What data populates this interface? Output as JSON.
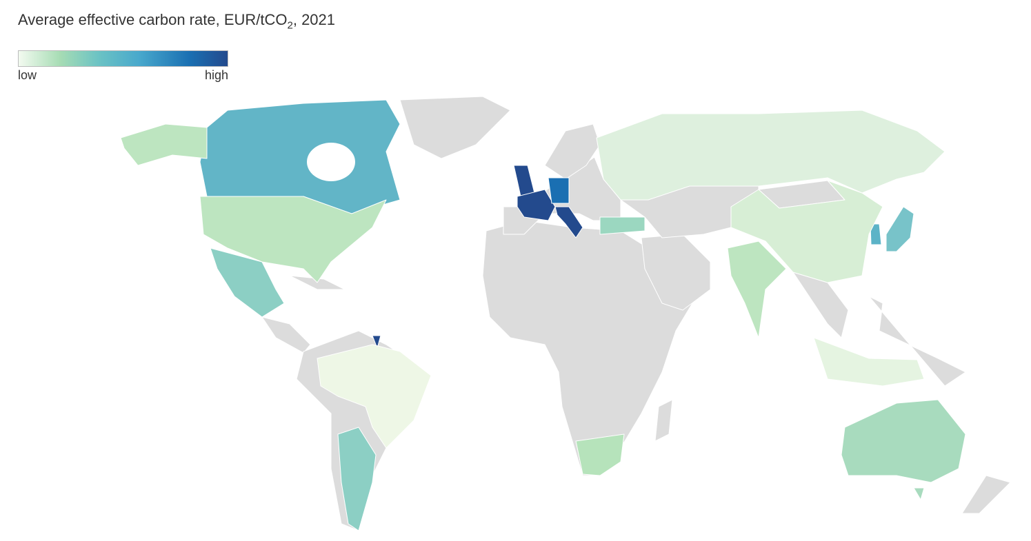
{
  "title": {
    "main": "Average effective carbon rate, EUR/tCO",
    "sub": "2",
    "suffix": ", 2021"
  },
  "legend": {
    "low": "low",
    "high": "high",
    "colors": [
      "#f3faf0",
      "#a6dcb4",
      "#6cc3c4",
      "#48a8cc",
      "#1a6fb2",
      "#234a8d"
    ]
  },
  "no_data_color": "#dcdcdc",
  "countries": [
    {
      "name": "United Kingdom",
      "color": "#234a8d"
    },
    {
      "name": "France",
      "color": "#234a8d"
    },
    {
      "name": "Italy",
      "color": "#234a8d"
    },
    {
      "name": "French Guiana",
      "color": "#234a8d"
    },
    {
      "name": "Germany",
      "color": "#1a6fb2"
    },
    {
      "name": "Canada",
      "color": "#62b5c7"
    },
    {
      "name": "South Korea",
      "color": "#5cb3c7"
    },
    {
      "name": "Japan",
      "color": "#78c3c9"
    },
    {
      "name": "Mexico",
      "color": "#8ccfc4"
    },
    {
      "name": "Argentina",
      "color": "#8ccfc4"
    },
    {
      "name": "Turkey",
      "color": "#9bd7c0"
    },
    {
      "name": "Australia",
      "color": "#a8dbbe"
    },
    {
      "name": "South Africa",
      "color": "#b6e3bb"
    },
    {
      "name": "United States",
      "color": "#bde5c0"
    },
    {
      "name": "India",
      "color": "#bde5c0"
    },
    {
      "name": "China",
      "color": "#d7eed5"
    },
    {
      "name": "Russia",
      "color": "#def0de"
    },
    {
      "name": "Indonesia",
      "color": "#e5f4e1"
    },
    {
      "name": "Brazil",
      "color": "#eef7e6"
    }
  ]
}
